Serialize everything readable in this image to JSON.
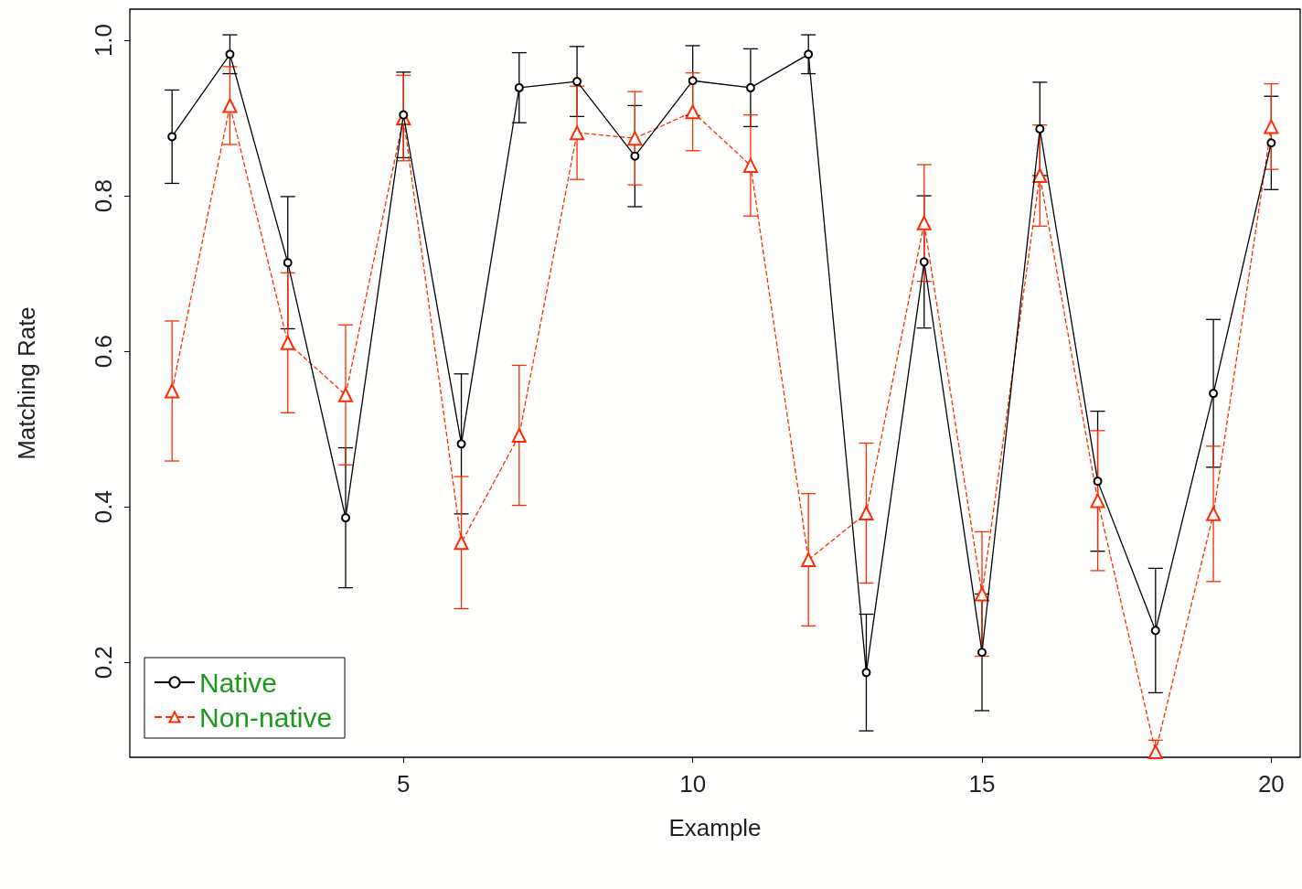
{
  "chart_data": {
    "type": "line",
    "xlabel": "Example",
    "ylabel": "Matching Rate",
    "x": [
      1,
      2,
      3,
      4,
      5,
      6,
      7,
      8,
      9,
      10,
      11,
      12,
      13,
      14,
      15,
      16,
      17,
      18,
      19,
      20
    ],
    "xlim": [
      0.27,
      20.5
    ],
    "xticks": [
      5,
      10,
      15,
      20
    ],
    "ylim": [
      0.078,
      1.04
    ],
    "yticks": [
      0.2,
      0.4,
      0.6,
      0.8,
      {
        "value": 1,
        "label": "1.0"
      }
    ],
    "grid": false,
    "legend": "bottom left",
    "series": [
      {
        "name": "Native",
        "color": "#000000",
        "marker": "circle",
        "line_style": "solid",
        "values": [
          0.876,
          0.982,
          0.714,
          0.386,
          0.904,
          0.481,
          0.939,
          0.947,
          0.851,
          0.948,
          0.939,
          0.982,
          0.187,
          0.715,
          0.213,
          0.886,
          0.433,
          0.241,
          0.546,
          0.868
        ],
        "errors": [
          0.06,
          0.025,
          0.085,
          0.09,
          0.055,
          0.09,
          0.045,
          0.045,
          0.065,
          0.045,
          0.05,
          0.025,
          0.075,
          0.085,
          0.075,
          0.06,
          0.09,
          0.08,
          0.095,
          0.06
        ]
      },
      {
        "name": "Non-native",
        "color": "#ff2a00",
        "marker": "triangle",
        "line_style": "dashed",
        "values": [
          0.549,
          0.916,
          0.611,
          0.544,
          0.9,
          0.354,
          0.492,
          0.881,
          0.874,
          0.908,
          0.839,
          0.332,
          0.392,
          0.765,
          0.288,
          0.826,
          0.408,
          0.085,
          0.391,
          0.889
        ],
        "errors": [
          0.09,
          0.05,
          0.09,
          0.09,
          0.055,
          0.085,
          0.09,
          0.06,
          0.06,
          0.05,
          0.065,
          0.085,
          0.09,
          0.075,
          0.08,
          0.065,
          0.09,
          [
            0.078,
            0.1
          ],
          0.087,
          0.055
        ]
      }
    ]
  }
}
